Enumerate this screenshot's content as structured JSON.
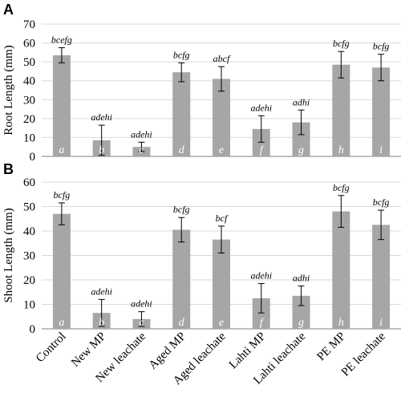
{
  "colors": {
    "bar": "#a6a6a6",
    "grid": "#d9d9d9",
    "axis": "#7f7f7f",
    "text": "#000000",
    "letter_in_bar": "#ffffff"
  },
  "categories": [
    "Control",
    "New MP",
    "New leachate",
    "Aged MP",
    "Aged leachate",
    "Lahti MP",
    "Lahti leachate",
    "PE MP",
    "PE leachate"
  ],
  "chart_data": [
    {
      "type": "bar",
      "panel_label": "A",
      "ylabel": "Root Length (mm)",
      "ylim": [
        0,
        70
      ],
      "yticks": [
        0,
        10,
        20,
        30,
        40,
        50,
        60,
        70
      ],
      "grid": true,
      "values": [
        53.5,
        8.5,
        5,
        44.5,
        41,
        14.5,
        18,
        48.5,
        47
      ],
      "error": [
        4,
        8,
        2.5,
        5,
        6.5,
        7,
        6.5,
        7,
        7
      ],
      "sig_labels": [
        "bcefg",
        "adehi",
        "adehi",
        "bcfg",
        "abcf",
        "adehi",
        "adhi",
        "bcfg",
        "bcfg"
      ],
      "bar_letters": [
        "a",
        "b",
        "c",
        "d",
        "e",
        "f",
        "g",
        "h",
        "i"
      ]
    },
    {
      "type": "bar",
      "panel_label": "B",
      "ylabel": "Shoot Length (mm)",
      "ylim": [
        0,
        60
      ],
      "yticks": [
        0,
        10,
        20,
        30,
        40,
        50,
        60
      ],
      "grid": true,
      "values": [
        47,
        6.5,
        4,
        40.5,
        36.5,
        12.5,
        13.5,
        48,
        42.5
      ],
      "error": [
        4.5,
        5.5,
        3,
        5,
        5.5,
        6,
        4,
        6.5,
        6
      ],
      "sig_labels": [
        "bcfg",
        "adehi",
        "adehi",
        "bcfg",
        "bcf",
        "adehi",
        "adhi",
        "bcfg",
        "bcfg"
      ],
      "bar_letters": [
        "a",
        "b",
        "c",
        "d",
        "e",
        "f",
        "g",
        "h",
        "i"
      ]
    }
  ]
}
